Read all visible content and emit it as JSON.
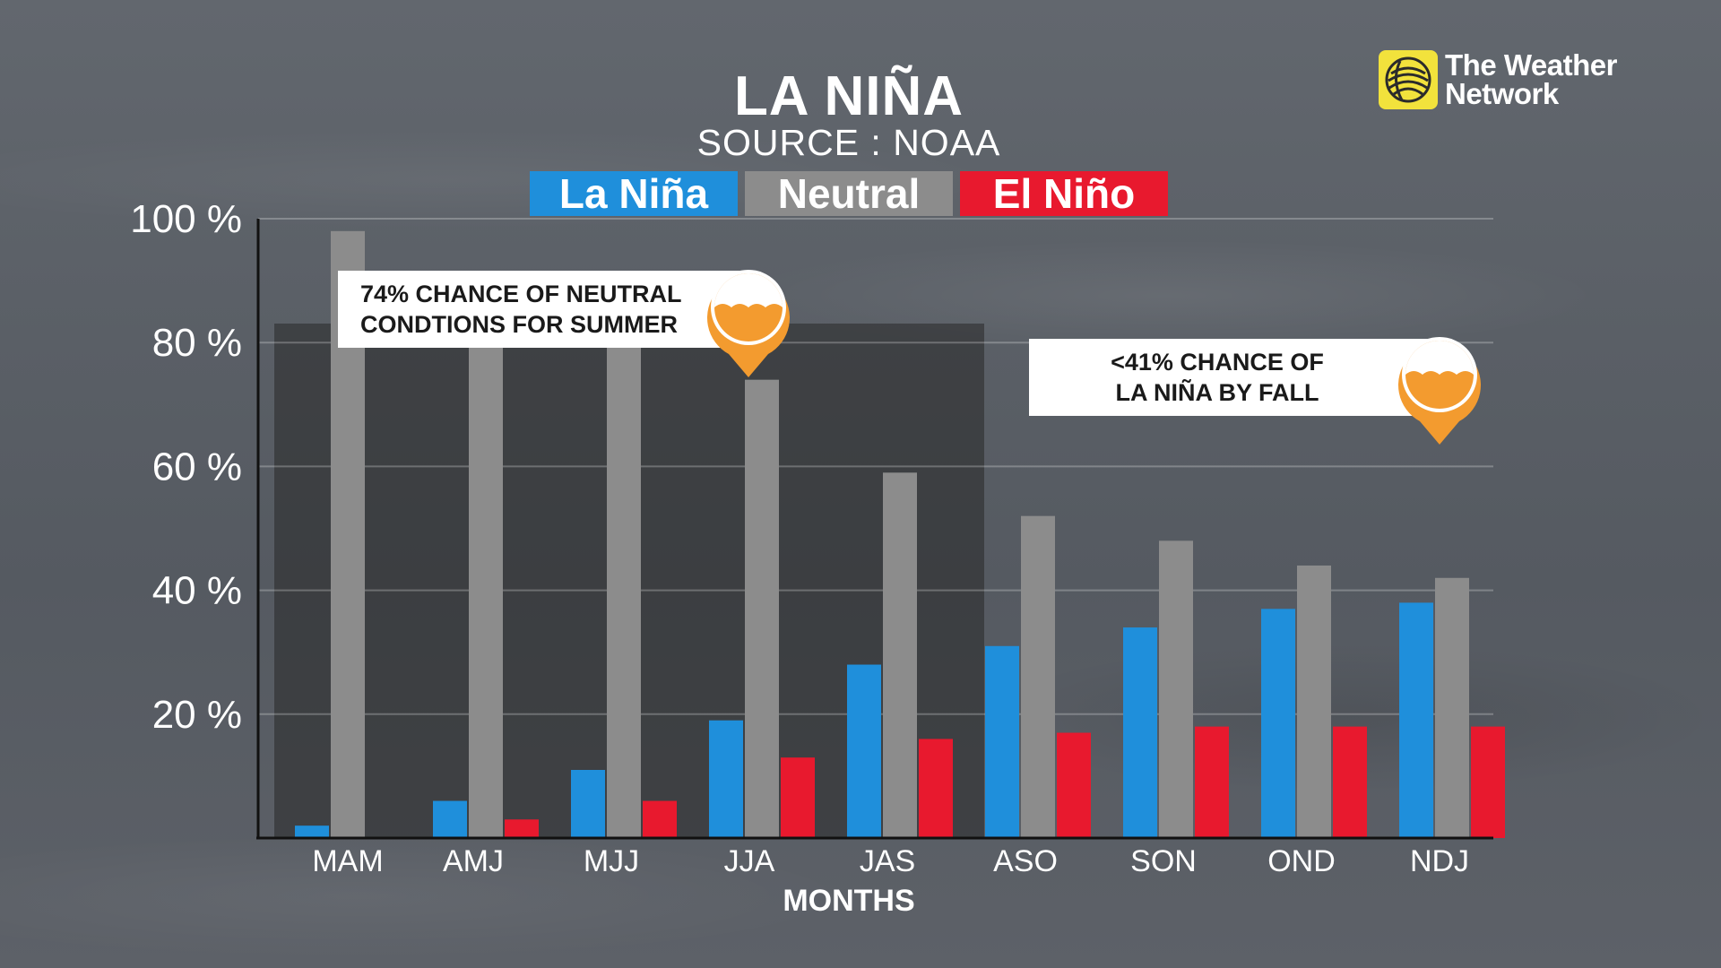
{
  "header": {
    "title": "LA NIÑA",
    "subtitle": "SOURCE : NOAA"
  },
  "brand": {
    "line1": "The Weather",
    "line2": "Network",
    "logo_icon": "globe-icon",
    "logo_color": "#f2e23c"
  },
  "legend": [
    {
      "label": "La Niña",
      "color": "#1f8fdb"
    },
    {
      "label": "Neutral",
      "color": "#8c8c8c"
    },
    {
      "label": "El Niño",
      "color": "#e8192e"
    }
  ],
  "annotations": {
    "summer": {
      "line1": "74% CHANCE OF NEUTRAL",
      "line2": "CONDTIONS FOR SUMMER",
      "icon": "water-level-icon"
    },
    "fall": {
      "line1": "<41% CHANCE OF",
      "line2": "LA NIÑA BY FALL",
      "icon": "water-level-icon"
    },
    "accent_color": "#f39b2f"
  },
  "chart_data": {
    "type": "bar",
    "title": "LA NIÑA",
    "subtitle": "SOURCE : NOAA",
    "xlabel": "MONTHS",
    "ylabel": "",
    "ylim": [
      0,
      100
    ],
    "yticks": [
      20,
      40,
      60,
      80,
      100
    ],
    "ytick_labels": [
      "20 %",
      "40 %",
      "60 %",
      "80 %",
      "100 %"
    ],
    "grid": true,
    "legend_position": "top-center",
    "categories": [
      "MAM",
      "AMJ",
      "MJJ",
      "JJA",
      "JAS",
      "ASO",
      "SON",
      "OND",
      "NDJ"
    ],
    "highlight_range": [
      "MAM",
      "JAS"
    ],
    "series": [
      {
        "name": "La Niña",
        "color": "#1f8fdb",
        "values": [
          2,
          6,
          11,
          19,
          28,
          31,
          34,
          37,
          38
        ]
      },
      {
        "name": "Neutral",
        "color": "#8c8c8c",
        "values": [
          98,
          80,
          80,
          74,
          59,
          52,
          48,
          44,
          42
        ]
      },
      {
        "name": "El Niño",
        "color": "#e8192e",
        "values": [
          0,
          3,
          6,
          13,
          16,
          17,
          18,
          18,
          18
        ]
      }
    ]
  }
}
